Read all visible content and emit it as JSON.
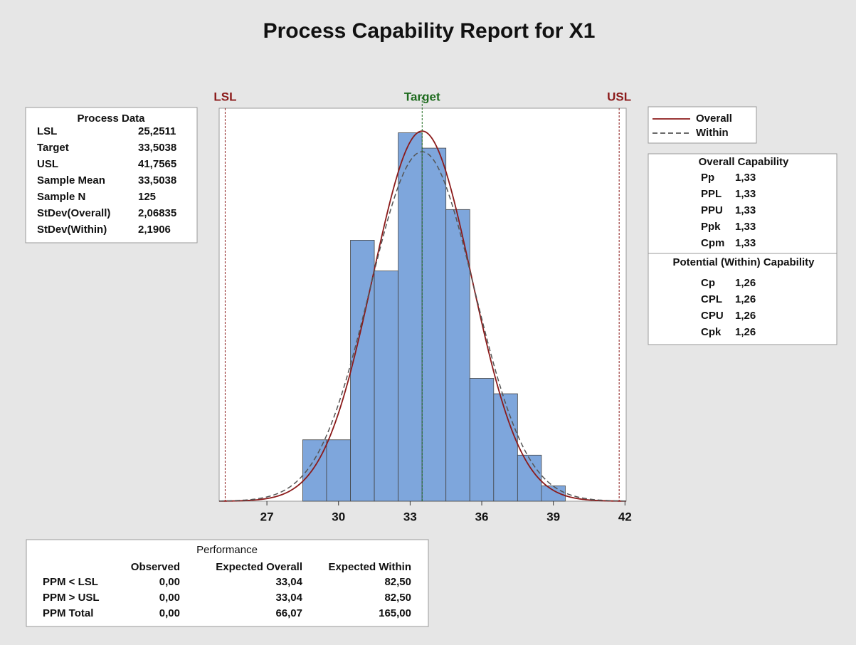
{
  "chart_data": {
    "type": "histogram",
    "title": "Process Capability Report for X1",
    "bins": [
      28.5,
      29.5,
      30.5,
      31.5,
      32.5,
      33.5,
      34.5,
      35.5,
      36.5,
      37.5,
      38.5,
      39.5
    ],
    "counts": [
      4,
      4,
      17,
      15,
      24,
      23,
      19,
      8,
      7,
      3,
      1
    ],
    "color": "#7ea6dc",
    "xlim": [
      25,
      42.05
    ],
    "ylim": [
      0,
      25.6
    ],
    "xticks": [
      27,
      30,
      33,
      36,
      39,
      42
    ],
    "spec_lines": [
      {
        "label": "LSL",
        "color": "#8b1a1a"
      },
      {
        "label": "Target",
        "color": "#1e6b1e"
      },
      {
        "label": "USL",
        "color": "#8b1a1a"
      }
    ],
    "legend": [
      {
        "name": "Overall",
        "color": "#8b1a1a",
        "style": "solid"
      },
      {
        "name": "Within",
        "color": "#555555",
        "style": "dashed"
      }
    ]
  },
  "process_data": {
    "title": "Process Data",
    "rows": [
      [
        "LSL",
        {
          "value": 25.2511,
          "label": "25,2511"
        }
      ],
      [
        "Target",
        {
          "value": 33.5038,
          "label": "33,5038"
        }
      ],
      [
        "USL",
        {
          "value": 41.7565,
          "label": "41,7565"
        }
      ],
      [
        "Sample Mean",
        {
          "value": 33.5038,
          "label": "33,5038"
        }
      ],
      [
        "Sample N",
        125
      ],
      [
        "StDev(Overall)",
        {
          "value": 2.06835,
          "label": "2,06835"
        }
      ],
      [
        "StDev(Within)",
        {
          "value": 2.1906,
          "label": "2,1906"
        }
      ]
    ]
  },
  "overall_capability": {
    "title": "Overall Capability",
    "rows": [
      [
        "Pp",
        "1,33"
      ],
      [
        "PPL",
        "1,33"
      ],
      [
        "PPU",
        "1,33"
      ],
      [
        "Ppk",
        "1,33"
      ],
      [
        "Cpm",
        "1,33"
      ]
    ]
  },
  "potential_capability": {
    "title": "Potential (Within) Capability",
    "rows": [
      [
        "Cp",
        "1,26"
      ],
      [
        "CPL",
        "1,26"
      ],
      [
        "CPU",
        "1,26"
      ],
      [
        "Cpk",
        "1,26"
      ]
    ]
  },
  "performance": {
    "title": "Performance",
    "columns": [
      "Observed",
      "Expected Overall",
      "Expected Within"
    ],
    "rows": [
      [
        "PPM < LSL",
        "0,00",
        "33,04",
        "82,50"
      ],
      [
        "PPM > USL",
        "0,00",
        "33,04",
        "82,50"
      ],
      [
        "PPM Total",
        "0,00",
        "66,07",
        "165,00"
      ]
    ]
  }
}
